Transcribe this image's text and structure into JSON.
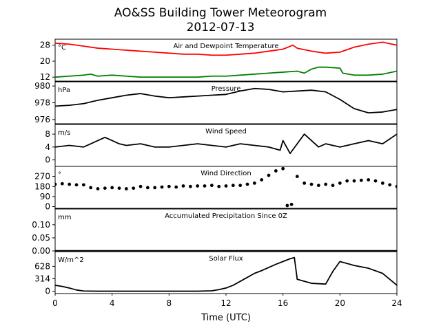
{
  "figure": {
    "title_line1": "AO&SS Building Tower Meteorogram",
    "title_line2": "2012-07-13",
    "xlabel": "Time (UTC)"
  },
  "chart_data": {
    "type": "line",
    "title": "AO&SS Building Tower Meteorogram 2012-07-13",
    "xlabel": "Time (UTC)",
    "xlim": [
      0,
      24
    ],
    "xticks": [
      "0",
      "4",
      "8",
      "12",
      "16",
      "20",
      "24"
    ],
    "xtick_values": [
      0,
      4,
      8,
      12,
      16,
      20,
      24
    ],
    "panels": [
      {
        "title": "Air and Dewpoint Temperature",
        "unit": "°C",
        "ylim": [
          10,
          31
        ],
        "yticks": [
          12,
          20,
          28
        ],
        "ytick_labels": [
          "12",
          "20",
          "28"
        ],
        "series": [
          {
            "color": "#ff0000",
            "style": "line",
            "x": [
              0,
              1,
              2,
              3,
              4,
              5,
              6,
              7,
              8,
              9,
              10,
              11,
              12,
              13,
              14,
              15,
              16,
              16.7,
              17,
              18,
              19,
              20,
              21,
              22,
              23,
              24
            ],
            "y": [
              29,
              28.5,
              27.5,
              26.5,
              26,
              25.5,
              25,
              24.5,
              24,
              23.5,
              23.5,
              23,
              23,
              23.5,
              24,
              25,
              26,
              28,
              26.5,
              25,
              24,
              24.5,
              27,
              28.5,
              29.5,
              28
            ]
          },
          {
            "color": "#008000",
            "style": "line",
            "x": [
              0,
              1,
              2,
              2.5,
              3,
              4,
              5,
              6,
              7,
              8,
              9,
              10,
              11,
              12,
              13,
              14,
              15,
              16,
              17,
              17.5,
              18,
              18.5,
              19,
              20,
              20.2,
              21,
              22,
              23,
              24
            ],
            "y": [
              12,
              12.5,
              13,
              13.5,
              12.5,
              13,
              12.5,
              12,
              12,
              12,
              12,
              12,
              12.5,
              12.5,
              13,
              13.5,
              14,
              14.5,
              15,
              14,
              16,
              17,
              17,
              16.5,
              14,
              13,
              13,
              13.5,
              15
            ]
          }
        ]
      },
      {
        "title": "Pressure",
        "unit": "hPa",
        "ylim": [
          975.5,
          980.5
        ],
        "yticks": [
          976,
          978,
          980
        ],
        "ytick_labels": [
          "976",
          "978",
          "980"
        ],
        "series": [
          {
            "color": "#000000",
            "style": "line",
            "x": [
              0,
              1,
              2,
              3,
              4,
              5,
              6,
              7,
              8,
              9,
              10,
              11,
              12,
              13,
              14,
              15,
              16,
              17,
              18,
              19,
              20,
              21,
              22,
              23,
              24
            ],
            "y": [
              977.6,
              977.7,
              977.9,
              978.3,
              978.6,
              978.9,
              979.1,
              978.8,
              978.6,
              978.7,
              978.8,
              978.9,
              979.0,
              979.4,
              979.7,
              979.6,
              979.3,
              979.4,
              979.5,
              979.3,
              978.4,
              977.3,
              976.8,
              976.9,
              977.2
            ]
          }
        ]
      },
      {
        "title": "Wind Speed",
        "unit": "m/s",
        "ylim": [
          -2,
          11
        ],
        "yticks": [
          0,
          4,
          8
        ],
        "ytick_labels": [
          "0",
          "4",
          "8"
        ],
        "series": [
          {
            "color": "#000000",
            "style": "line",
            "x": [
              0,
              1,
              2,
              2.5,
              3,
              3.5,
              4,
              4.5,
              5,
              6,
              7,
              8,
              9,
              10,
              11,
              12,
              13,
              14,
              15,
              15.8,
              16,
              16.5,
              17,
              17.5,
              18,
              18.5,
              19,
              20,
              21,
              22,
              23,
              24
            ],
            "y": [
              4,
              4.5,
              4,
              5,
              6,
              7,
              6,
              5,
              4.5,
              5,
              4,
              4,
              4.5,
              5,
              4.5,
              4,
              5,
              4.5,
              4,
              3,
              6,
              2,
              5,
              8,
              6,
              4,
              5,
              4,
              5,
              6,
              5,
              8
            ]
          }
        ]
      },
      {
        "title": "Wind Direction",
        "unit": "°",
        "ylim": [
          -15,
          360
        ],
        "yticks": [
          0,
          90,
          180,
          270
        ],
        "ytick_labels": [
          "0",
          "90",
          "180",
          "270"
        ],
        "series": [
          {
            "color": "#000000",
            "style": "markers",
            "x": [
              0,
              0.5,
              1,
              1.5,
              2,
              2.5,
              3,
              3.5,
              4,
              4.5,
              5,
              5.5,
              6,
              6.5,
              7,
              7.5,
              8,
              8.5,
              9,
              9.5,
              10,
              10.5,
              11,
              11.5,
              12,
              12.5,
              13,
              13.5,
              14,
              14.5,
              15,
              15.5,
              16,
              16.3,
              16.6,
              17,
              17.5,
              18,
              18.5,
              19,
              19.5,
              20,
              20.5,
              21,
              21.5,
              22,
              22.5,
              23,
              23.5,
              24
            ],
            "y": [
              200,
              205,
              200,
              195,
              195,
              170,
              160,
              165,
              170,
              165,
              160,
              165,
              180,
              170,
              170,
              175,
              180,
              175,
              185,
              180,
              185,
              185,
              190,
              180,
              185,
              190,
              190,
              200,
              210,
              240,
              280,
              320,
              340,
              10,
              20,
              270,
              210,
              200,
              190,
              200,
              190,
              210,
              230,
              230,
              235,
              240,
              230,
              210,
              195,
              180
            ]
          }
        ]
      },
      {
        "title": "Accumulated Precipitation Since 0Z",
        "unit": "mm",
        "ylim": [
          0,
          0.16
        ],
        "yticks": [
          0.0,
          0.05,
          0.1
        ],
        "ytick_labels": [
          "0.00",
          "0.05",
          "0.10"
        ],
        "series": [
          {
            "color": "#000000",
            "style": "line",
            "x": [
              0,
              24
            ],
            "y": [
              0,
              0
            ]
          }
        ]
      },
      {
        "title": "Solar Flux",
        "unit": "W/m^2",
        "ylim": [
          -60,
          1000
        ],
        "yticks": [
          0,
          314,
          628
        ],
        "ytick_labels": [
          "0",
          "314",
          "628"
        ],
        "series": [
          {
            "color": "#000000",
            "style": "line",
            "x": [
              0,
              0.5,
              1,
              1.5,
              2,
              3,
              4,
              6,
              8,
              10,
              11,
              11.5,
              12,
              12.5,
              13,
              13.5,
              14,
              14.5,
              15,
              15.5,
              16,
              16.5,
              16.8,
              17,
              17.5,
              18,
              19,
              19.5,
              20,
              20.5,
              21,
              22,
              23,
              23.5,
              24
            ],
            "y": [
              150,
              120,
              80,
              30,
              5,
              0,
              0,
              0,
              0,
              0,
              10,
              40,
              80,
              150,
              250,
              350,
              450,
              520,
              600,
              680,
              750,
              820,
              850,
              300,
              250,
              200,
              180,
              500,
              750,
              700,
              650,
              580,
              450,
              300,
              150
            ]
          }
        ]
      }
    ]
  }
}
